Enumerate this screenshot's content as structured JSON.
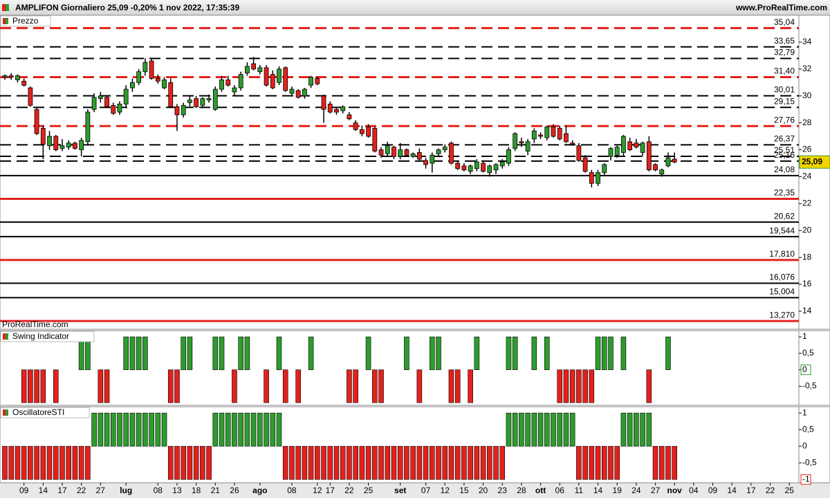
{
  "header": {
    "title": "AMPLIFON Giornaliero 25,09  -0,20%  1 nov 2022, 17:35:39",
    "site": "www.ProRealTime.com"
  },
  "chart_data": [
    {
      "type": "candlestick",
      "title": "Prezzo",
      "watermark": "ProRealTime.com",
      "ylim": [
        12.66,
        36.0
      ],
      "yticks": [
        14,
        16,
        18,
        20,
        22,
        24,
        26,
        28,
        30,
        32,
        34
      ],
      "up_color": "#2e9b2e",
      "down_color": "#e3211c",
      "last_label": "25,09",
      "open": [
        31.4,
        31.5,
        31.2,
        31.1,
        30.6,
        29.0,
        27.6,
        26.3,
        27.0,
        26.1,
        26.2,
        26.5,
        26.0,
        26.6,
        29.0,
        29.8,
        29.9,
        29.3,
        28.8,
        29.4,
        30.6,
        31.0,
        31.8,
        32.6,
        31.3,
        30.6,
        31.0,
        29.2,
        28.6,
        29.5,
        29.8,
        29.3,
        29.7,
        29.0,
        30.5,
        31.2,
        30.3,
        30.6,
        31.7,
        32.4,
        31.8,
        32.1,
        31.6,
        31.0,
        32.1,
        30.2,
        30.4,
        30.0,
        30.8,
        31.3,
        30.0,
        29.4,
        29.0,
        28.9,
        28.6,
        28.0,
        27.5,
        27.7,
        27.6,
        26.0,
        25.7,
        26.2,
        25.5,
        26.0,
        25.5,
        25.8,
        25.2,
        25.0,
        25.7,
        26.0,
        26.5,
        25.0,
        24.8,
        24.4,
        24.6,
        25.0,
        24.3,
        24.5,
        24.8,
        25.0,
        26.1,
        26.6,
        25.9,
        26.8,
        27.1,
        26.9,
        27.7,
        27.6,
        27.2,
        26.5,
        26.3,
        25.4,
        24.3,
        23.5,
        24.3,
        25.5,
        25.6,
        25.8,
        26.6,
        26.5,
        25.8,
        26.6,
        24.9,
        24.2,
        24.8,
        25.3
      ],
      "high": [
        31.6,
        31.7,
        31.6,
        31.3,
        30.7,
        29.1,
        27.8,
        27.4,
        27.1,
        26.8,
        26.7,
        26.6,
        26.9,
        29.0,
        30.2,
        30.3,
        30.0,
        29.5,
        29.6,
        30.8,
        31.3,
        32.0,
        32.8,
        32.8,
        31.6,
        31.4,
        31.3,
        29.4,
        29.5,
        30.0,
        30.0,
        29.9,
        30.1,
        30.7,
        31.5,
        31.5,
        30.8,
        31.8,
        32.5,
        32.9,
        32.3,
        32.3,
        31.9,
        32.2,
        32.2,
        30.7,
        30.5,
        30.6,
        31.5,
        31.4,
        30.1,
        29.6,
        29.2,
        29.3,
        28.8,
        28.2,
        27.8,
        27.9,
        27.7,
        26.2,
        26.6,
        26.3,
        26.5,
        26.1,
        25.8,
        26.1,
        25.4,
        25.8,
        26.1,
        26.4,
        26.6,
        25.2,
        25.0,
        24.9,
        25.3,
        25.2,
        24.9,
        25.0,
        25.3,
        26.2,
        27.3,
        26.9,
        26.8,
        27.6,
        27.3,
        27.8,
        27.9,
        27.8,
        27.8,
        26.7,
        26.5,
        25.6,
        24.5,
        24.5,
        25.0,
        26.2,
        26.3,
        27.1,
        26.9,
        26.8,
        26.6,
        27.0,
        25.0,
        24.6,
        25.8,
        25.8
      ],
      "low": [
        31.2,
        31.2,
        31.0,
        30.7,
        29.2,
        27.1,
        25.3,
        26.0,
        25.9,
        25.9,
        26.0,
        26.0,
        25.5,
        26.4,
        28.8,
        29.5,
        29.1,
        28.6,
        28.6,
        29.2,
        30.3,
        30.8,
        31.5,
        31.2,
        30.9,
        30.5,
        29.1,
        27.4,
        28.4,
        29.2,
        29.1,
        29.1,
        29.5,
        28.9,
        30.3,
        30.7,
        30.0,
        30.4,
        31.5,
        31.9,
        31.6,
        30.7,
        30.5,
        30.8,
        30.3,
        30.0,
        29.8,
        29.8,
        30.6,
        30.8,
        28.0,
        28.7,
        28.6,
        28.7,
        28.2,
        27.4,
        27.0,
        26.9,
        25.8,
        25.4,
        25.5,
        25.3,
        25.3,
        25.5,
        25.4,
        25.2,
        24.6,
        24.3,
        25.5,
        25.8,
        24.9,
        24.5,
        24.4,
        24.2,
        24.4,
        24.3,
        24.0,
        24.2,
        24.6,
        24.8,
        25.9,
        26.2,
        25.6,
        26.5,
        26.8,
        26.7,
        26.9,
        26.7,
        26.5,
        26.3,
        25.1,
        24.3,
        23.2,
        23.3,
        24.1,
        25.2,
        25.4,
        25.5,
        25.9,
        26.1,
        25.5,
        24.4,
        24.4,
        24.0,
        24.7,
        25.0
      ],
      "close": [
        31.5,
        31.4,
        31.5,
        30.8,
        29.3,
        27.2,
        26.4,
        27.0,
        26.0,
        26.3,
        26.5,
        26.1,
        26.7,
        28.8,
        29.9,
        30.0,
        29.2,
        28.7,
        29.4,
        30.5,
        31.0,
        31.8,
        32.5,
        31.3,
        31.1,
        31.2,
        29.2,
        28.6,
        29.3,
        29.7,
        29.2,
        29.8,
        29.8,
        30.5,
        31.2,
        30.8,
        30.6,
        31.6,
        32.2,
        32.0,
        32.1,
        30.8,
        30.6,
        32.0,
        30.4,
        30.5,
        29.9,
        30.5,
        31.4,
        30.9,
        29.0,
        28.8,
        28.8,
        29.2,
        28.3,
        27.5,
        27.2,
        27.0,
        25.9,
        25.6,
        26.3,
        25.5,
        26.0,
        25.6,
        25.7,
        25.3,
        24.9,
        25.6,
        26.0,
        26.2,
        25.0,
        24.6,
        24.5,
        24.8,
        25.1,
        24.4,
        24.8,
        24.9,
        25.1,
        26.0,
        27.2,
        26.5,
        26.6,
        27.4,
        27.0,
        27.7,
        27.0,
        26.8,
        26.6,
        26.4,
        25.2,
        24.4,
        23.5,
        24.3,
        24.9,
        26.1,
        26.2,
        27.0,
        26.0,
        26.2,
        26.5,
        24.5,
        24.5,
        24.5,
        25.4,
        25.09
      ],
      "levels": [
        {
          "value": 35.04,
          "label": "35,04",
          "color": "#e3211c",
          "dashed": true
        },
        {
          "value": 33.65,
          "label": "33,65",
          "color": "#000000",
          "dashed": true
        },
        {
          "value": 32.79,
          "label": "32,79",
          "color": "#000000",
          "dashed": true
        },
        {
          "value": 31.4,
          "label": "31,40",
          "color": "#e3211c",
          "dashed": true
        },
        {
          "value": 30.01,
          "label": "30,01",
          "color": "#000000",
          "dashed": true
        },
        {
          "value": 29.15,
          "label": "29,15",
          "color": "#000000",
          "dashed": true
        },
        {
          "value": 27.76,
          "label": "27,76",
          "color": "#e3211c",
          "dashed": true
        },
        {
          "value": 26.37,
          "label": "26,37",
          "color": "#000000",
          "dashed": true
        },
        {
          "value": 25.51,
          "label": "25,51",
          "color": "#000000",
          "dashed": true
        },
        {
          "value": 25.16,
          "label": "25,16",
          "color": "#000000",
          "dashed": true
        },
        {
          "value": 24.08,
          "label": "24,08",
          "color": "#000000",
          "dashed": false
        },
        {
          "value": 22.35,
          "label": "22,35",
          "color": "#e3211c",
          "dashed": false
        },
        {
          "value": 20.62,
          "label": "20,62",
          "color": "#000000",
          "dashed": false
        },
        {
          "value": 19.544,
          "label": "19,544",
          "color": "#000000",
          "dashed": false
        },
        {
          "value": 17.81,
          "label": "17,810",
          "color": "#e3211c",
          "dashed": false
        },
        {
          "value": 16.076,
          "label": "16,076",
          "color": "#000000",
          "dashed": false
        },
        {
          "value": 15.004,
          "label": "15,004",
          "color": "#000000",
          "dashed": false
        },
        {
          "value": 13.27,
          "label": "13,270",
          "color": "#e3211c",
          "dashed": false
        }
      ]
    },
    {
      "type": "bar",
      "title": "Swing Indicator",
      "ylim": [
        -1.08,
        1.19
      ],
      "yticks": [
        1,
        {
          "value": 0.5,
          "label": "0,5"
        },
        0,
        {
          "value": -0.5,
          "label": "-0,5"
        }
      ],
      "up_color": "#2e9b2e",
      "down_color": "#e3211c",
      "values": [
        0,
        0,
        0,
        -1,
        -1,
        -1,
        -1,
        0,
        -1,
        0,
        0,
        0,
        1,
        1,
        0,
        -1,
        -1,
        0,
        0,
        1,
        1,
        1,
        1,
        0,
        0,
        0,
        -1,
        -1,
        1,
        1,
        0,
        0,
        0,
        1,
        1,
        0,
        -1,
        1,
        1,
        0,
        0,
        -1,
        0,
        1,
        -1,
        0,
        -1,
        0,
        1,
        0,
        0,
        0,
        0,
        0,
        -1,
        -1,
        0,
        1,
        -1,
        -1,
        0,
        0,
        0,
        1,
        0,
        -1,
        0,
        1,
        1,
        0,
        -1,
        -1,
        0,
        -1,
        1,
        0,
        0,
        0,
        0,
        1,
        1,
        0,
        0,
        1,
        0,
        1,
        0,
        -1,
        -1,
        -1,
        -1,
        -1,
        -1,
        1,
        1,
        1,
        0,
        1,
        0,
        0,
        0,
        -1,
        0,
        0,
        1,
        0
      ]
    },
    {
      "type": "bar",
      "title": "OscillatoreSTI",
      "ylim": [
        -1.1,
        1.19
      ],
      "yticks": [
        1,
        {
          "value": 0.5,
          "label": "0,5"
        },
        0,
        {
          "value": -0.5,
          "label": "-0,5"
        }
      ],
      "up_color": "#2e9b2e",
      "down_color": "#e3211c",
      "values": [
        -1,
        -1,
        -1,
        -1,
        -1,
        -1,
        -1,
        -1,
        -1,
        -1,
        -1,
        -1,
        -1,
        -1,
        1,
        1,
        1,
        1,
        1,
        1,
        1,
        1,
        1,
        1,
        1,
        1,
        -1,
        -1,
        -1,
        -1,
        -1,
        -1,
        -1,
        1,
        1,
        1,
        1,
        1,
        1,
        1,
        1,
        1,
        1,
        1,
        -1,
        -1,
        -1,
        -1,
        -1,
        -1,
        -1,
        -1,
        -1,
        -1,
        -1,
        -1,
        -1,
        -1,
        -1,
        -1,
        -1,
        -1,
        -1,
        -1,
        -1,
        -1,
        -1,
        -1,
        -1,
        -1,
        -1,
        -1,
        -1,
        -1,
        -1,
        -1,
        -1,
        -1,
        -1,
        1,
        1,
        1,
        1,
        1,
        1,
        1,
        1,
        1,
        1,
        1,
        -1,
        -1,
        -1,
        -1,
        -1,
        -1,
        -1,
        1,
        1,
        1,
        1,
        1,
        -1,
        -1,
        -1,
        -1
      ],
      "xlim": [
        -0.76,
        124.5
      ],
      "xticks": [
        {
          "value": 3,
          "label": "09"
        },
        {
          "value": 6,
          "label": "14"
        },
        {
          "value": 9,
          "label": "17"
        },
        {
          "value": 12,
          "label": "22"
        },
        {
          "value": 15,
          "label": "27"
        },
        {
          "value": 19,
          "label": "lug"
        },
        {
          "value": 24,
          "label": "08"
        },
        {
          "value": 27,
          "label": "13"
        },
        {
          "value": 30,
          "label": "18"
        },
        {
          "value": 33,
          "label": "21"
        },
        {
          "value": 36,
          "label": "26"
        },
        {
          "value": 40,
          "label": "ago"
        },
        {
          "value": 45,
          "label": "08"
        },
        {
          "value": 49,
          "label": "12"
        },
        {
          "value": 51,
          "label": "17"
        },
        {
          "value": 54,
          "label": "22"
        },
        {
          "value": 57,
          "label": "25"
        },
        {
          "value": 62,
          "label": "set"
        },
        {
          "value": 66,
          "label": "07"
        },
        {
          "value": 69,
          "label": "12"
        },
        {
          "value": 72,
          "label": "15"
        },
        {
          "value": 75,
          "label": "20"
        },
        {
          "value": 78,
          "label": "23"
        },
        {
          "value": 81,
          "label": "28"
        },
        {
          "value": 84,
          "label": "ott"
        },
        {
          "value": 87,
          "label": "06"
        },
        {
          "value": 90,
          "label": "11"
        },
        {
          "value": 93,
          "label": "14"
        },
        {
          "value": 96,
          "label": "19"
        },
        {
          "value": 99,
          "label": "24"
        },
        {
          "value": 102,
          "label": "27"
        },
        {
          "value": 105,
          "label": "nov"
        },
        {
          "value": 108,
          "label": "04"
        },
        {
          "value": 111,
          "label": "09"
        },
        {
          "value": 114,
          "label": "14"
        },
        {
          "value": 117,
          "label": "17"
        },
        {
          "value": 120,
          "label": "22"
        },
        {
          "value": 123,
          "label": "25"
        }
      ]
    }
  ]
}
